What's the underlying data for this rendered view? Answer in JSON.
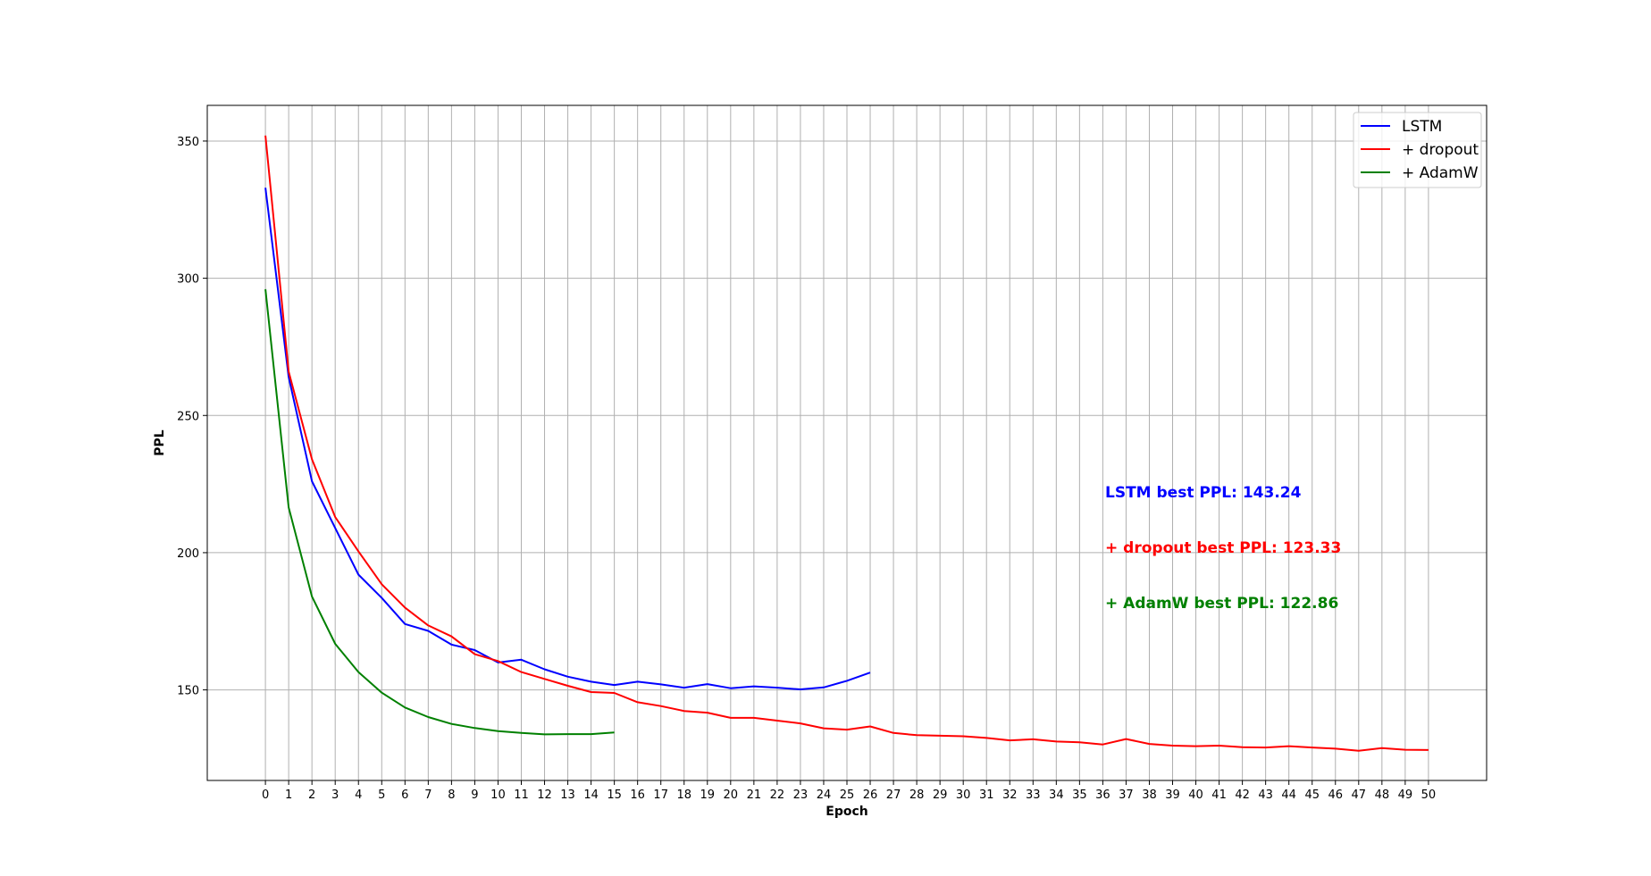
{
  "chart_data": {
    "type": "line",
    "title": "",
    "xlabel": "Epoch",
    "ylabel": "PPL",
    "xlim": [
      -2.5,
      52.5
    ],
    "ylim": [
      117,
      363
    ],
    "x_ticks": [
      0,
      1,
      2,
      3,
      4,
      5,
      6,
      7,
      8,
      9,
      10,
      11,
      12,
      13,
      14,
      15,
      16,
      17,
      18,
      19,
      20,
      21,
      22,
      23,
      24,
      25,
      26,
      27,
      28,
      29,
      30,
      31,
      32,
      33,
      34,
      35,
      36,
      37,
      38,
      39,
      40,
      41,
      42,
      43,
      44,
      45,
      46,
      47,
      48,
      49,
      50
    ],
    "y_ticks": [
      150,
      200,
      250,
      300,
      350
    ],
    "grid": true,
    "legend_position": "top-right",
    "series": [
      {
        "name": "LSTM",
        "color": "#0000ff",
        "x": [
          0,
          1,
          2,
          3,
          4,
          5,
          6,
          7,
          8,
          9,
          10,
          11,
          12,
          13,
          14,
          15,
          16,
          17,
          18,
          19,
          20,
          21,
          22,
          23,
          24,
          25,
          26
        ],
        "values": [
          333,
          264,
          226,
          209,
          192,
          183.5,
          174,
          171.5,
          166.5,
          164.5,
          160,
          161,
          157.5,
          154.8,
          153,
          151.8,
          153,
          152,
          150.8,
          152.1,
          150.6,
          151.3,
          150.8,
          150.2,
          150.9,
          153.3,
          156.3
        ]
      },
      {
        "name": "+ dropout",
        "color": "#ff0000",
        "x": [
          0,
          1,
          2,
          3,
          4,
          5,
          6,
          7,
          8,
          9,
          10,
          11,
          12,
          13,
          14,
          15,
          16,
          17,
          18,
          19,
          20,
          21,
          22,
          23,
          24,
          25,
          26,
          27,
          28,
          29,
          30,
          31,
          32,
          33,
          34,
          35,
          36,
          37,
          38,
          39,
          40,
          41,
          42,
          43,
          44,
          45,
          46,
          47,
          48,
          49,
          50
        ],
        "values": [
          352,
          266,
          234,
          213,
          200.5,
          188.5,
          180,
          173.5,
          169.5,
          163,
          160.5,
          156.5,
          154,
          151.5,
          149.2,
          148.9,
          145.5,
          144.1,
          142.3,
          141.7,
          139.8,
          139.8,
          138.8,
          137.8,
          136,
          135.5,
          136.7,
          134.3,
          133.5,
          133.3,
          133.1,
          132.5,
          131.6,
          132,
          131.2,
          130.9,
          130.1,
          132.1,
          130.3,
          129.7,
          129.5,
          129.7,
          129.1,
          129,
          129.5,
          129,
          128.6,
          127.8,
          128.8,
          128.2,
          128.1
        ]
      },
      {
        "name": "+ AdamW",
        "color": "#008000",
        "x": [
          0,
          1,
          2,
          3,
          4,
          5,
          6,
          7,
          8,
          9,
          10,
          11,
          12,
          13,
          14,
          15
        ],
        "values": [
          296,
          216.5,
          184,
          166.8,
          156.5,
          149,
          143.6,
          140.1,
          137.6,
          136.1,
          135,
          134.3,
          133.8,
          133.9,
          133.9,
          134.5
        ]
      }
    ],
    "annotations": [
      {
        "text": "LSTM best PPL: 143.24",
        "color": "#0000ff"
      },
      {
        "text": "+ dropout best PPL: 123.33",
        "color": "#ff0000"
      },
      {
        "text": "+ AdamW best PPL: 122.86",
        "color": "#008000"
      }
    ]
  }
}
